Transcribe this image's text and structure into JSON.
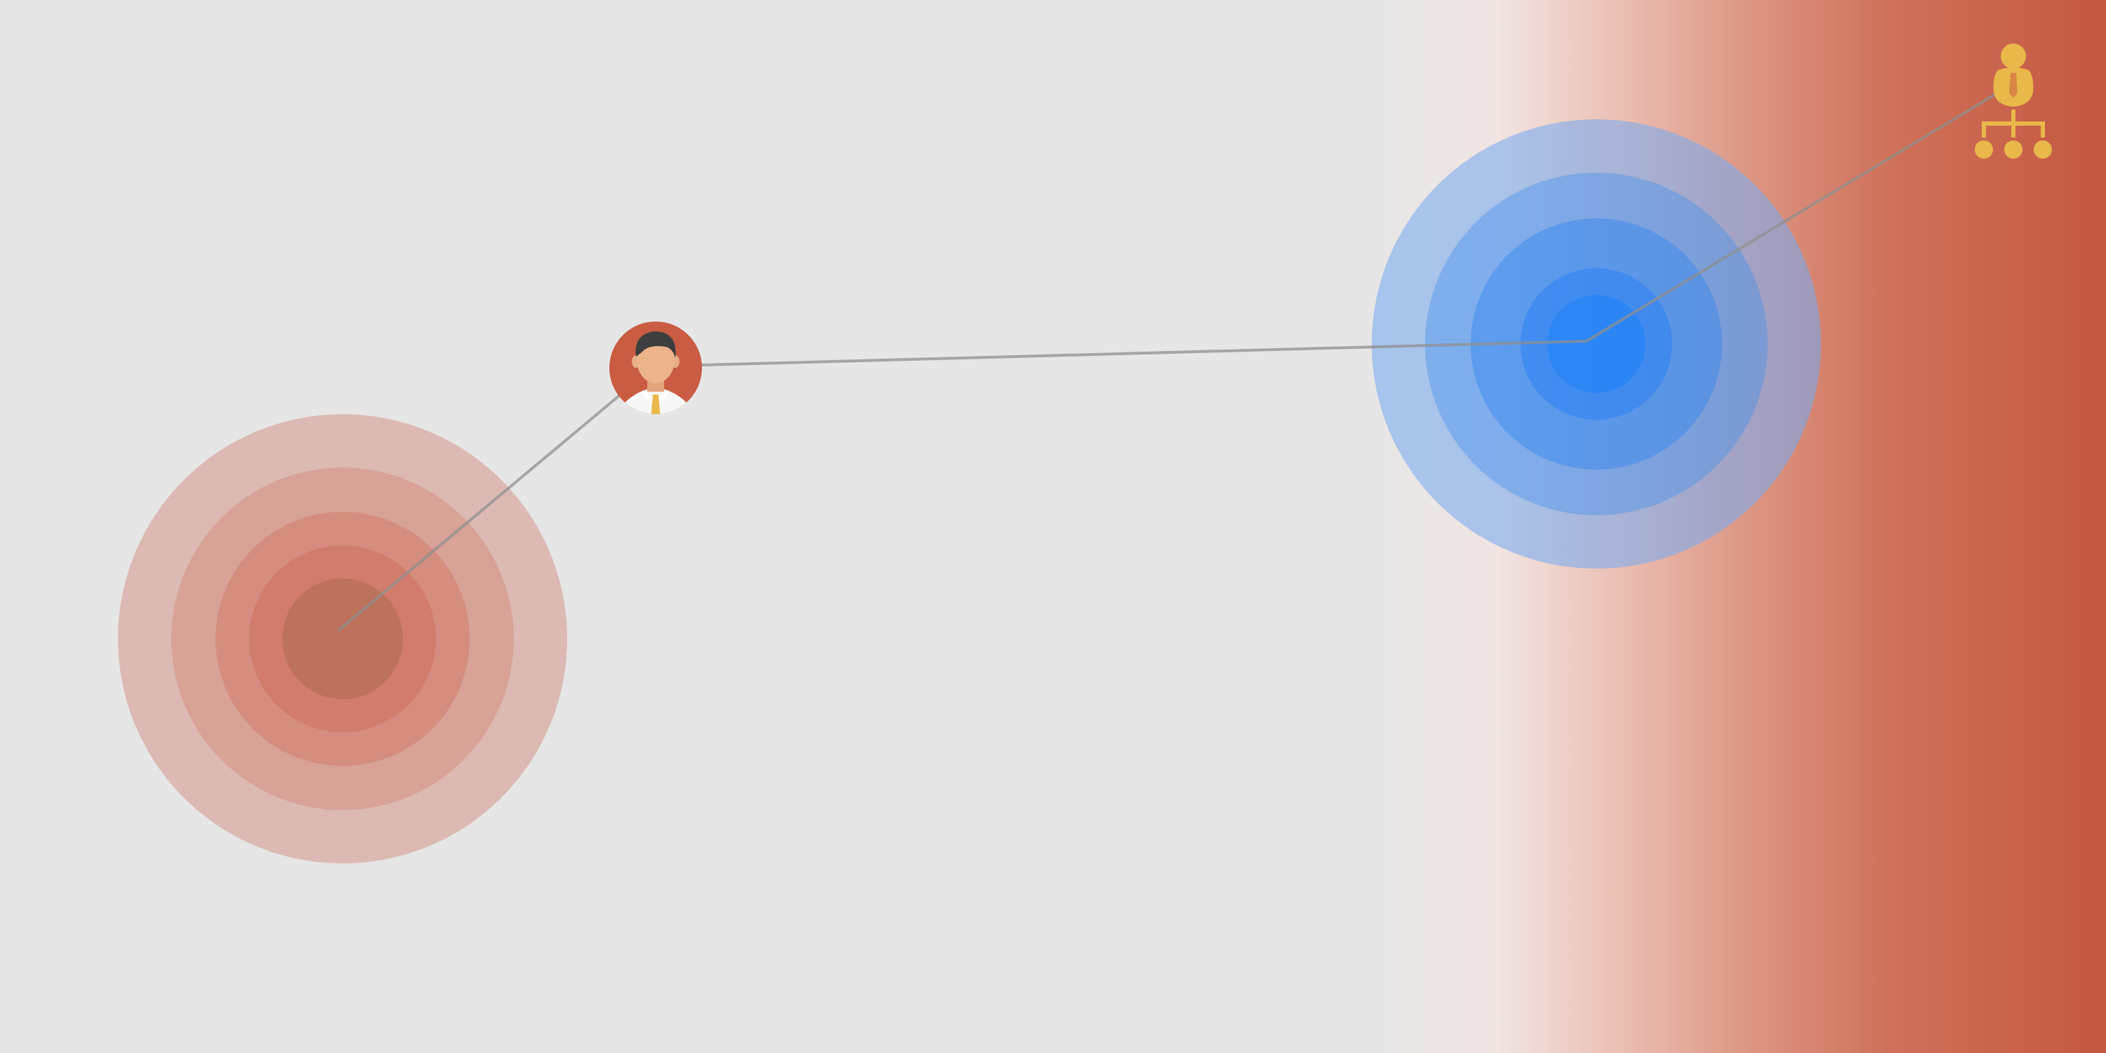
{
  "diagram": {
    "colors": {
      "background": "#e6e6e6",
      "gradient_end": "#c4583f",
      "target_red": "#c86c5a",
      "target_blue": "#2a86f5",
      "connector": "#8f8f8f",
      "avatar_bg": "#c95c43",
      "org_icon": "#e8b84a"
    },
    "nodes": [
      {
        "name": "red-target",
        "icon": "concentric-target-red"
      },
      {
        "name": "person-avatar",
        "icon": "businessman-avatar-icon"
      },
      {
        "name": "blue-target",
        "icon": "concentric-target-blue"
      },
      {
        "name": "org-chart",
        "icon": "org-chart-icon"
      }
    ]
  }
}
